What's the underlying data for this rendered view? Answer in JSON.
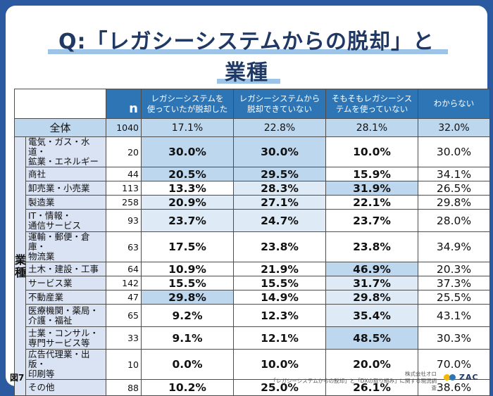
{
  "title": {
    "line1": "Q:「レガシーシステムからの脱却」と",
    "line2": "業種"
  },
  "header": {
    "n_label": "n",
    "columns": [
      [
        "レガシーシステムを",
        "使っていたが脱却した"
      ],
      [
        "レガシーシステムから",
        "脱却できていない"
      ],
      [
        "そもそもレガシーシス",
        "テムを使っていない"
      ],
      [
        "わからない"
      ]
    ]
  },
  "total": {
    "label": "全体",
    "n": "1040",
    "values": [
      "17.1%",
      "22.8%",
      "28.1%",
      "32.0%"
    ]
  },
  "group_label": [
    "業",
    "種"
  ],
  "rows": [
    {
      "label": [
        "電気・ガス・水道・",
        "鉱業・エネルギー"
      ],
      "n": "20",
      "values": [
        "30.0%",
        "30.0%",
        "10.0%",
        "30.0%"
      ],
      "h": "r1",
      "shade": [
        "dark",
        "dark",
        "white",
        "white"
      ]
    },
    {
      "label": [
        "商社"
      ],
      "n": "44",
      "values": [
        "20.5%",
        "29.5%",
        "15.9%",
        "34.1%"
      ],
      "h": "r2",
      "shade": [
        "dark",
        "dark",
        "white",
        "white"
      ]
    },
    {
      "label": [
        "卸売業・小売業"
      ],
      "n": "113",
      "values": [
        "13.3%",
        "28.3%",
        "31.9%",
        "26.5%"
      ],
      "h": "r2",
      "shade": [
        "white",
        "light",
        "dark",
        "white"
      ]
    },
    {
      "label": [
        "製造業"
      ],
      "n": "258",
      "values": [
        "20.9%",
        "27.1%",
        "22.1%",
        "29.8%"
      ],
      "h": "r2",
      "shade": [
        "light",
        "light",
        "white",
        "white"
      ]
    },
    {
      "label": [
        "IT・情報・",
        "通信サービス"
      ],
      "n": "93",
      "values": [
        "23.7%",
        "24.7%",
        "23.7%",
        "28.0%"
      ],
      "h": "r1",
      "shade": [
        "light",
        "light",
        "white",
        "white"
      ]
    },
    {
      "label": [
        "運輸・郵便・倉庫・",
        "物流業"
      ],
      "n": "63",
      "values": [
        "17.5%",
        "23.8%",
        "23.8%",
        "34.9%"
      ],
      "h": "r1",
      "shade": [
        "white",
        "white",
        "white",
        "white"
      ]
    },
    {
      "label": [
        "土木・建設・工事"
      ],
      "n": "64",
      "values": [
        "10.9%",
        "21.9%",
        "46.9%",
        "20.3%"
      ],
      "h": "r2",
      "shade": [
        "white",
        "white",
        "dark",
        "white"
      ]
    },
    {
      "label": [
        "サービス業"
      ],
      "n": "142",
      "values": [
        "15.5%",
        "15.5%",
        "31.7%",
        "37.3%"
      ],
      "h": "r2",
      "shade": [
        "white",
        "white",
        "light",
        "white"
      ]
    },
    {
      "label": [
        "不動産業"
      ],
      "n": "47",
      "values": [
        "29.8%",
        "14.9%",
        "29.8%",
        "25.5%"
      ],
      "h": "r2",
      "shade": [
        "dark",
        "white",
        "light",
        "white"
      ]
    },
    {
      "label": [
        "医療機関・薬局・",
        "介護・福祉"
      ],
      "n": "65",
      "values": [
        "9.2%",
        "12.3%",
        "35.4%",
        "43.1%"
      ],
      "h": "r1",
      "shade": [
        "white",
        "white",
        "light",
        "white"
      ]
    },
    {
      "label": [
        "士業・コンサル・",
        "専門サービス等"
      ],
      "n": "33",
      "values": [
        "9.1%",
        "12.1%",
        "48.5%",
        "30.3%"
      ],
      "h": "r1",
      "shade": [
        "white",
        "white",
        "dark",
        "white"
      ]
    },
    {
      "label": [
        "広告代理業・出版・",
        "印刷等"
      ],
      "n": "10",
      "values": [
        "0.0%",
        "10.0%",
        "20.0%",
        "70.0%"
      ],
      "h": "r1",
      "shade": [
        "white",
        "white",
        "white",
        "white"
      ]
    },
    {
      "label": [
        "その他"
      ],
      "n": "88",
      "values": [
        "10.2%",
        "25.0%",
        "26.1%",
        "38.6%"
      ],
      "h": "r3",
      "shade": [
        "white",
        "white",
        "white",
        "white"
      ]
    }
  ],
  "footer": {
    "figure": "図7",
    "company": "株式会社オロ",
    "source": "「レガシーシステムからの脱却」と「DXの取り組み」に関する現況調査",
    "logo": "ZAC"
  },
  "colors": {
    "frame": "#2c5aa0",
    "header": "#2e75b6",
    "dark": "#bdd7ee",
    "light": "#deebf7",
    "label_bg": "#dae3f3",
    "title": "#1f3864"
  }
}
